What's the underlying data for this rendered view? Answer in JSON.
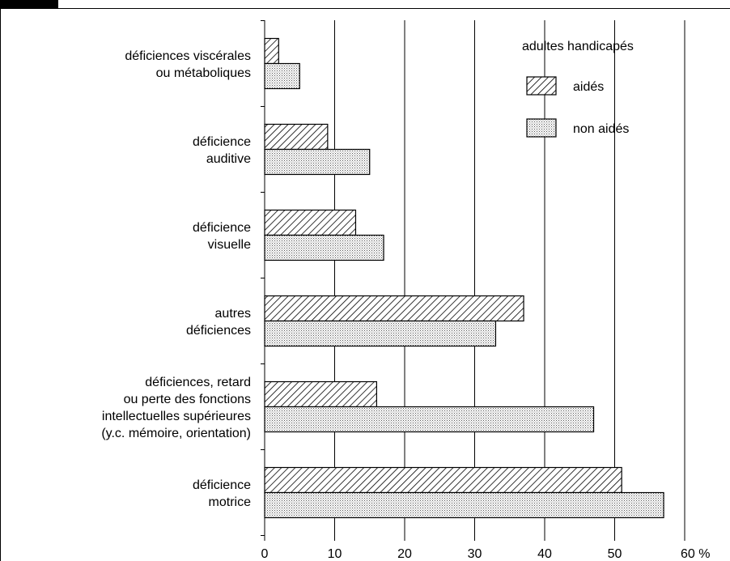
{
  "chart_data": {
    "type": "bar",
    "orientation": "horizontal",
    "categories": [
      [
        "déficiences viscérales",
        "ou métaboliques"
      ],
      [
        "déficience",
        "auditive"
      ],
      [
        "déficience",
        "visuelle"
      ],
      [
        "autres",
        "déficiences"
      ],
      [
        "déficiences, retard",
        "ou perte des fonctions",
        "intellectuelles supérieures",
        "(y.c. mémoire, orientation)"
      ],
      [
        "déficience",
        "motrice"
      ]
    ],
    "series": [
      {
        "name": "aidés",
        "values": [
          2,
          9,
          13,
          37,
          16,
          51
        ]
      },
      {
        "name": "non aidés",
        "values": [
          5,
          15,
          17,
          33,
          47,
          57
        ]
      }
    ],
    "xlim": [
      0,
      60
    ],
    "ticks": [
      "0",
      "10",
      "20",
      "30",
      "40",
      "50",
      "60 %"
    ],
    "grid": true,
    "legend": {
      "title": "adultes handicapés",
      "position": "top-right"
    }
  }
}
